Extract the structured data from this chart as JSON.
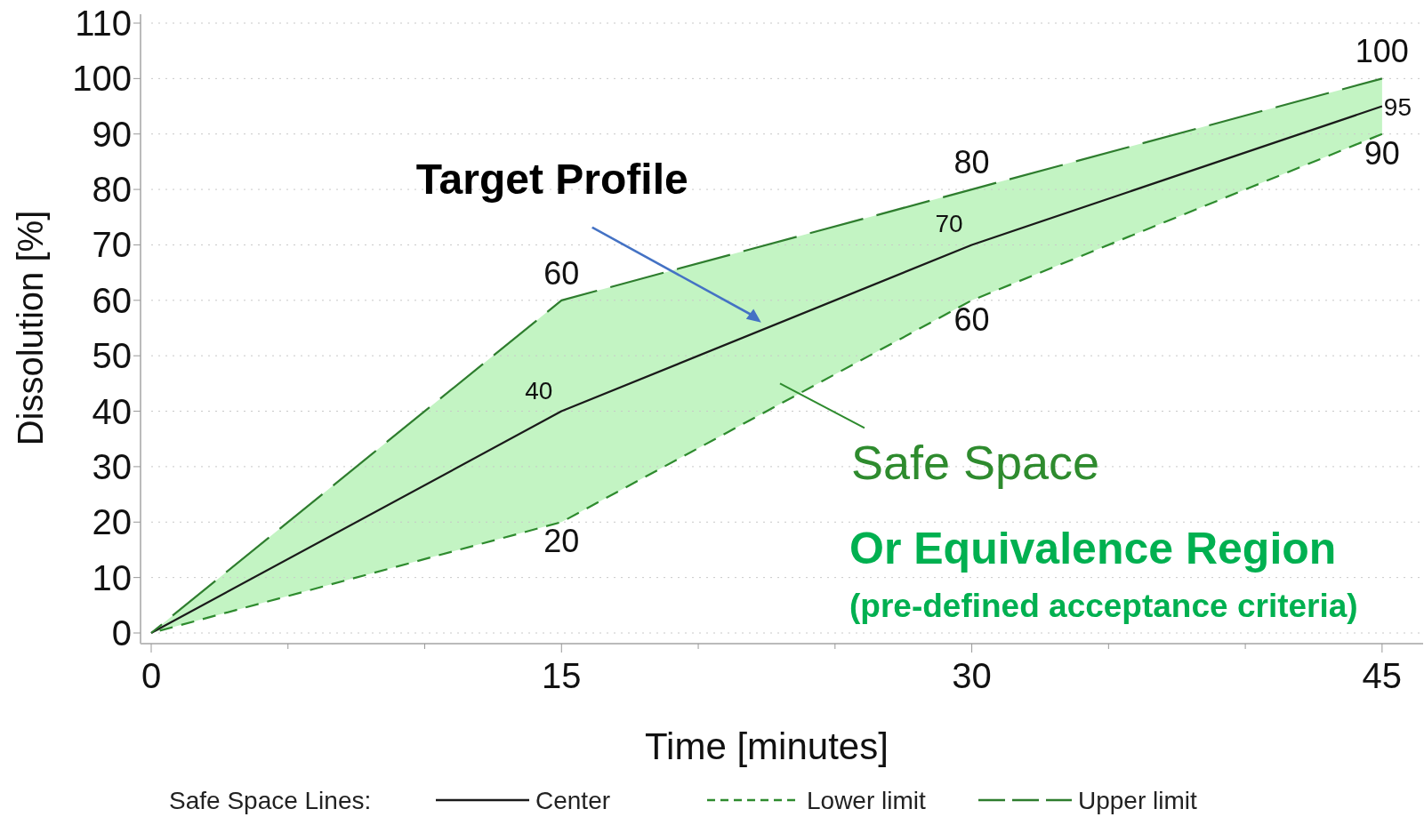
{
  "chart_data": {
    "type": "line",
    "xlabel": "Time [minutes]",
    "ylabel": "Dissolution [%]",
    "x": [
      0,
      15,
      30,
      45
    ],
    "xlim": [
      0,
      46.5
    ],
    "xticks": [
      0,
      {
        "value": 5,
        "label": null
      },
      {
        "value": 10,
        "label": null
      },
      15,
      {
        "value": 20,
        "label": null
      },
      {
        "value": 25,
        "label": null
      },
      30,
      {
        "value": 35,
        "label": null
      },
      {
        "value": 40,
        "label": null
      },
      45
    ],
    "ylim": [
      0,
      110
    ],
    "yticks": [
      0,
      10,
      20,
      30,
      40,
      50,
      60,
      70,
      80,
      90,
      100,
      110
    ],
    "grid": "y",
    "legend": "bottom",
    "legend_title": "Safe Space Lines:",
    "series": [
      {
        "name": "Center",
        "color": "#1a1a1a",
        "values": [
          0,
          40,
          70,
          95
        ],
        "value_labels": [
          null,
          "40",
          "70",
          "95"
        ],
        "line_style": "solid",
        "lower": [
          0,
          20,
          60,
          90
        ],
        "upper": [
          0,
          60,
          80,
          100
        ]
      },
      {
        "name": "Lower limit",
        "color": "#2e8b2e",
        "values": [
          0,
          20,
          60,
          90
        ],
        "value_labels": [
          null,
          "20",
          "60",
          "90"
        ],
        "line_style": "dashed"
      },
      {
        "name": "Upper limit",
        "color": "#2e7d2e",
        "values": [
          0,
          60,
          80,
          100
        ],
        "value_labels": [
          null,
          "60",
          "80",
          "100"
        ],
        "line_style": "longdash"
      }
    ],
    "annotations": [
      "Target Profile",
      "Safe Space",
      "Or Equivalence Region",
      "(pre-defined acceptance criteria)"
    ]
  }
}
